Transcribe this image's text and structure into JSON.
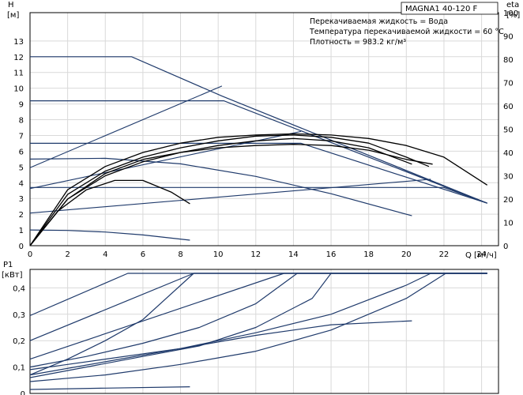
{
  "chart_data": [
    {
      "type": "line",
      "title": "MAGNA1 40-120 F",
      "info_lines": [
        "Перекачиваемая жидкость = Вода",
        "Температура перекачиваемой жидкости = 60 °C",
        "Плотность = 983.2 кг/м³"
      ],
      "ylabel_left": "H",
      "ylabel_left_unit": "[м]",
      "ylabel_right": "eta",
      "ylabel_right_unit": "[%]",
      "xlabel": "Q [м³/ч]",
      "xlim": [
        0,
        24.9
      ],
      "ylim_left": [
        0,
        14.8
      ],
      "ylim_right": [
        0,
        100
      ],
      "x_ticks": [
        "0",
        "2",
        "4",
        "6",
        "8",
        "10",
        "12",
        "14",
        "16",
        "18",
        "20",
        "22",
        "24"
      ],
      "y_ticks_left": [
        "0",
        "1",
        "2",
        "3",
        "4",
        "5",
        "6",
        "7",
        "8",
        "9",
        "10",
        "11",
        "12",
        "13"
      ],
      "y_ticks_right": [
        "0",
        "10",
        "20",
        "30",
        "40",
        "50",
        "60",
        "70",
        "80",
        "90",
        "100"
      ],
      "grid": true,
      "colors": {
        "head_curves": "#1f3a6b",
        "efficiency_curves": "#000000",
        "grid": "#d9d9d9"
      },
      "head_curves": [
        {
          "x": [
            0,
            5.4,
            10.2,
            24.3
          ],
          "y": [
            12,
            12,
            9.5,
            2.7
          ]
        },
        {
          "x": [
            0,
            10.3,
            24.3
          ],
          "y": [
            9.2,
            9.2,
            2.7
          ]
        },
        {
          "x": [
            0,
            14.4,
            24.3
          ],
          "y": [
            6.5,
            6.5,
            2.7
          ]
        },
        {
          "x": [
            0,
            22.0,
            24.3
          ],
          "y": [
            3.7,
            3.7,
            2.7
          ]
        },
        {
          "x": [
            0,
            4,
            8,
            12,
            16,
            20.3
          ],
          "y": [
            5.5,
            5.55,
            5.2,
            4.4,
            3.3,
            1.9
          ]
        },
        {
          "x": [
            0,
            2,
            4,
            6,
            8.5
          ],
          "y": [
            1.0,
            0.97,
            0.87,
            0.68,
            0.35
          ]
        }
      ],
      "efficiency_reference_lines": [
        {
          "x": [
            0,
            10.2
          ],
          "y": [
            33.5,
            68.5
          ]
        },
        {
          "x": [
            0,
            14.4
          ],
          "y": [
            24.5,
            49
          ]
        },
        {
          "x": [
            0,
            21.3
          ],
          "y": [
            14,
            28.5
          ]
        }
      ],
      "efficiency_curves": [
        {
          "x": [
            0,
            2,
            4,
            6,
            8,
            10,
            12,
            14,
            16,
            18,
            20,
            22,
            24.3
          ],
          "y": [
            0,
            24,
            34,
            40,
            44,
            46.5,
            47.5,
            48,
            47.5,
            46,
            43,
            38,
            26
          ]
        },
        {
          "x": [
            0,
            2,
            4,
            6,
            8,
            10,
            12,
            14,
            16,
            18,
            20,
            21.2
          ],
          "y": [
            0,
            22,
            32,
            38,
            42,
            45,
            47,
            47.5,
            46.5,
            44,
            38,
            34
          ]
        },
        {
          "x": [
            0,
            2,
            4,
            6,
            8,
            10,
            12,
            14,
            16,
            18,
            20.3
          ],
          "y": [
            0,
            20,
            30,
            36,
            40,
            43,
            45,
            46,
            45,
            42,
            35
          ]
        },
        {
          "x": [
            0,
            2,
            4,
            6,
            8,
            10,
            12,
            14,
            16,
            18,
            20,
            21.4
          ],
          "y": [
            0,
            20,
            31,
            37,
            40,
            42,
            43,
            43.5,
            43,
            41,
            37,
            35
          ]
        },
        {
          "x": [
            0,
            1.5,
            3,
            4.5,
            6,
            7.5,
            8.5
          ],
          "y": [
            0,
            15,
            24,
            28,
            28,
            23,
            18
          ]
        }
      ]
    },
    {
      "type": "line",
      "ylabel": "P1",
      "ylabel_unit": "[кВт]",
      "xlim": [
        0,
        24.9
      ],
      "ylim": [
        0,
        0.47
      ],
      "y_ticks": [
        "0",
        "0,1",
        "0,2",
        "0,3",
        "0,4"
      ],
      "grid": true,
      "colors": {
        "power_curves": "#1f3a6b"
      },
      "series": [
        {
          "x": [
            0,
            5.2,
            24.3
          ],
          "y": [
            0.295,
            0.455,
            0.455
          ]
        },
        {
          "x": [
            0,
            8.7,
            24.3
          ],
          "y": [
            0.2,
            0.455,
            0.455
          ]
        },
        {
          "x": [
            0,
            2,
            4,
            6,
            8.7,
            24.3
          ],
          "y": [
            0.07,
            0.13,
            0.2,
            0.28,
            0.455,
            0.455
          ]
        },
        {
          "x": [
            0,
            13.5,
            24.3
          ],
          "y": [
            0.13,
            0.455,
            0.455
          ]
        },
        {
          "x": [
            0,
            3,
            6,
            9,
            12,
            14.2,
            24.3
          ],
          "y": [
            0.1,
            0.14,
            0.19,
            0.25,
            0.34,
            0.455,
            0.455
          ]
        },
        {
          "x": [
            0,
            3,
            6,
            9,
            12,
            15,
            16,
            24.3
          ],
          "y": [
            0.06,
            0.1,
            0.14,
            0.18,
            0.25,
            0.36,
            0.455,
            0.455
          ]
        },
        {
          "x": [
            0,
            4,
            8,
            12,
            16,
            20,
            21.3,
            24.3
          ],
          "y": [
            0.07,
            0.12,
            0.17,
            0.23,
            0.3,
            0.41,
            0.455,
            0.455
          ]
        },
        {
          "x": [
            0,
            4,
            8,
            12,
            16,
            20,
            22.1,
            24.3
          ],
          "y": [
            0.045,
            0.07,
            0.11,
            0.16,
            0.24,
            0.36,
            0.455,
            0.455
          ]
        },
        {
          "x": [
            0,
            2,
            4,
            8,
            12,
            16,
            20.3
          ],
          "y": [
            0.09,
            0.11,
            0.13,
            0.17,
            0.22,
            0.26,
            0.275
          ]
        },
        {
          "x": [
            0,
            4,
            8.5
          ],
          "y": [
            0.015,
            0.02,
            0.025
          ]
        }
      ]
    }
  ]
}
